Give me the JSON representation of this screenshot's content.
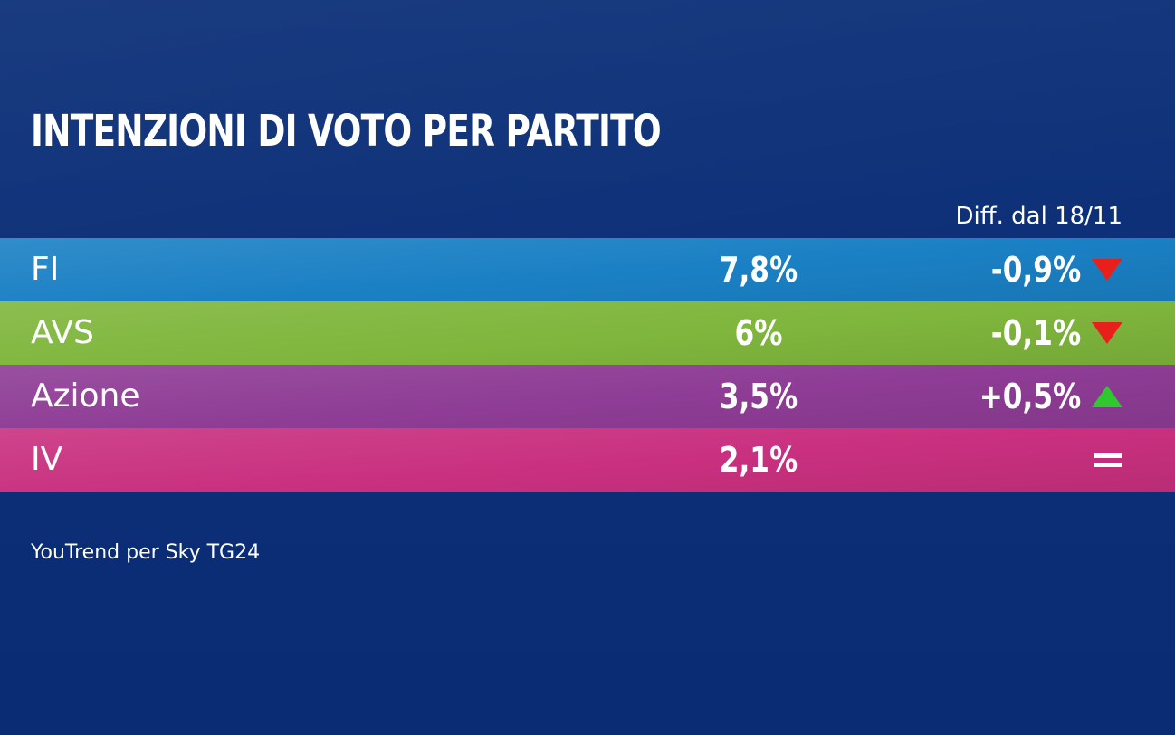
{
  "title": "INTENZIONI DI VOTO PER PARTITO",
  "diff_header": "Diff. dal 18/11",
  "source": "YouTrend per Sky TG24",
  "rows": [
    {
      "party": "FI",
      "value": "7,8%",
      "diff": "-0,9%",
      "trend": "down",
      "color": "#1a80c4"
    },
    {
      "party": "AVS",
      "value": "6%",
      "diff": "-0,1%",
      "trend": "down",
      "color": "#7fb63c"
    },
    {
      "party": "Azione",
      "value": "3,5%",
      "diff": "+0,5%",
      "trend": "up",
      "color": "#8e3c95"
    },
    {
      "party": "IV",
      "value": "2,1%",
      "diff": "",
      "trend": "equal",
      "color": "#c9307f"
    }
  ],
  "colors": {
    "background": "#0c2f78",
    "down_arrow": "#e8201c",
    "up_arrow": "#2fc92f"
  },
  "chart_data": {
    "type": "table",
    "title": "INTENZIONI DI VOTO PER PARTITO",
    "columns": [
      "",
      "",
      "Diff. dal 18/11"
    ],
    "categories": [
      "FI",
      "AVS",
      "Azione",
      "IV"
    ],
    "values": [
      7.8,
      6,
      3.5,
      2.1
    ],
    "diffs": [
      -0.9,
      -0.1,
      0.5,
      0
    ],
    "trend_icons": [
      "down-arrow",
      "down-arrow",
      "up-arrow",
      "equal"
    ]
  }
}
